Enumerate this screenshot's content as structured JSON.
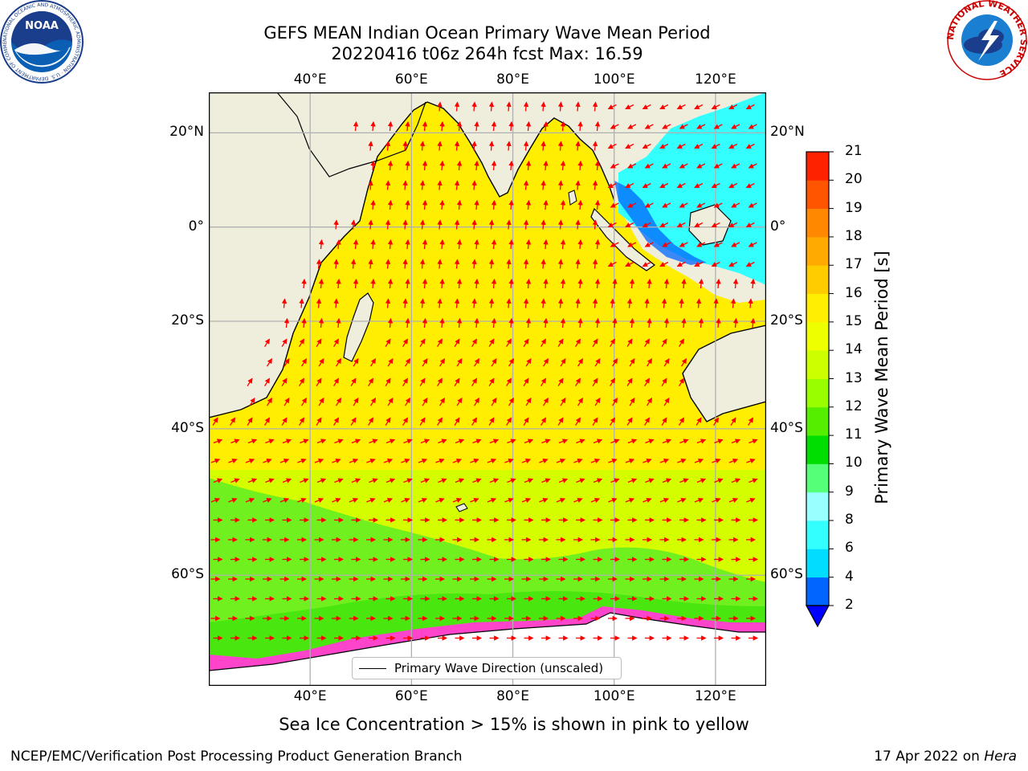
{
  "title": {
    "line1": "GEFS MEAN Indian Ocean Primary Wave Mean Period",
    "line2": "20220416 t06z 264h fcst   Max: 16.59"
  },
  "map": {
    "lon_labels": [
      "40°E",
      "60°E",
      "80°E",
      "100°E",
      "120°E"
    ],
    "lat_labels_left": [
      "20°N",
      "0°",
      "20°S",
      "40°S",
      "60°S"
    ],
    "lat_labels_right": [
      "20°N",
      "0°",
      "20°S",
      "40°S",
      "60°S"
    ],
    "extent": {
      "lon_min": 20,
      "lon_max": 130,
      "lat_min": -70,
      "lat_max": 28
    },
    "colors": {
      "land": "#efeedd",
      "ocean_main": "#ffee00",
      "coast": "#000000",
      "arrow": "#ff0000",
      "grid": "#b0b0b0"
    },
    "legend_label": "Primary Wave Direction (unscaled)"
  },
  "colorbar": {
    "label": "Primary Wave Mean Period [s]",
    "ticks": [
      "2",
      "4",
      "6",
      "8",
      "9",
      "10",
      "11",
      "12",
      "13",
      "14",
      "15",
      "16",
      "17",
      "18",
      "19",
      "20",
      "21"
    ],
    "colors": [
      "#0066ff",
      "#00ddff",
      "#33ffff",
      "#99ffff",
      "#55ff77",
      "#00dd00",
      "#55ee00",
      "#99ff00",
      "#ccff00",
      "#eeff00",
      "#ffee00",
      "#ffcc00",
      "#ffaa00",
      "#ff8800",
      "#ff5500",
      "#ff2200"
    ],
    "extend_color": "#0000ff"
  },
  "subtitle": "Sea Ice Concentration > 15% is shown in pink to yellow",
  "footer": {
    "left": "NCEP/EMC/Verification Post Processing Product Generation Branch",
    "right_prefix": "17 Apr 2022 on ",
    "right_italic": "Hera"
  },
  "logos": {
    "noaa_text": "NOAA",
    "noaa_ring": "NATIONAL OCEANIC AND ATMOSPHERIC ADMINISTRATION · U.S. DEPARTMENT OF COMMERCE",
    "nws_ring": "NATIONAL WEATHER SERVICE"
  }
}
